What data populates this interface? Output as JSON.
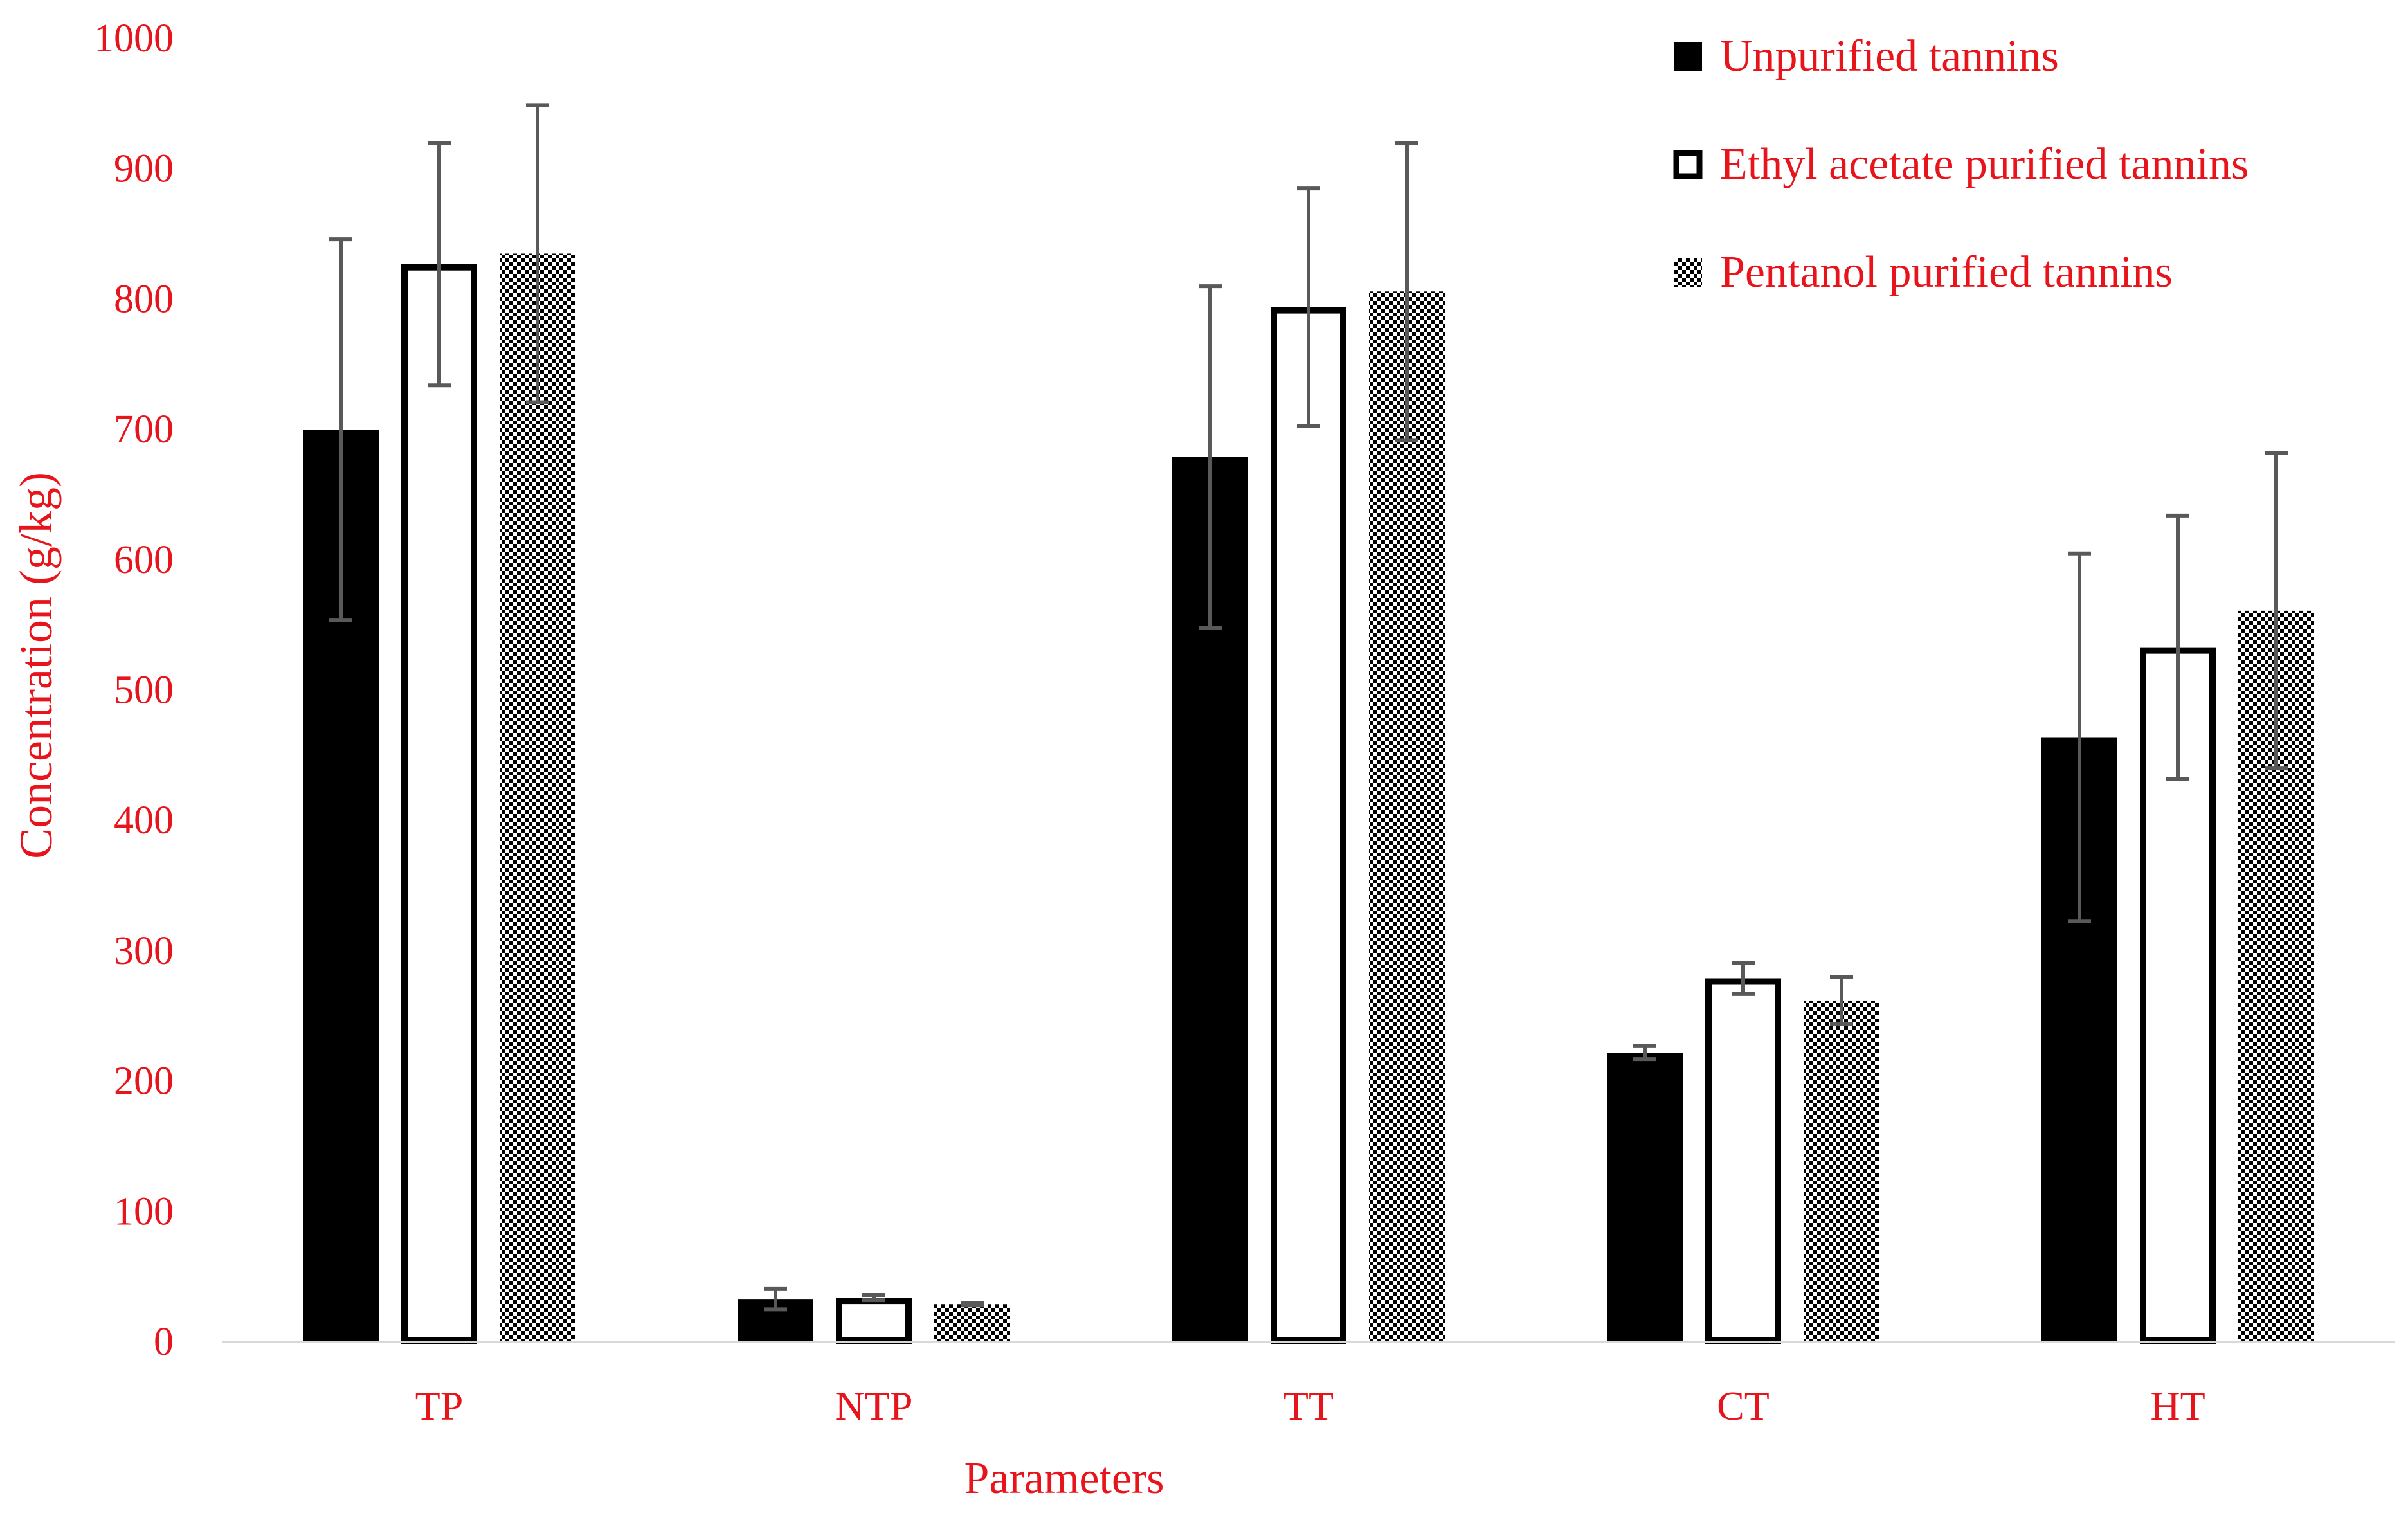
{
  "chart_data": {
    "type": "bar",
    "title": "",
    "xlabel": "Parameters",
    "ylabel": "Concentration (g/kg)",
    "ylim": [
      0,
      1000
    ],
    "yticks": [
      0,
      100,
      200,
      300,
      400,
      500,
      600,
      700,
      800,
      900,
      1000
    ],
    "grid": false,
    "legend_position": "top-right",
    "categories": [
      "TP",
      "NTP",
      "TT",
      "CT",
      "HT"
    ],
    "series": [
      {
        "name": "Unpurified tannins",
        "fill": "solid",
        "values": [
          699,
          32,
          678,
          221,
          463
        ],
        "errors": [
          146,
          8,
          131,
          5,
          141
        ]
      },
      {
        "name": "Ethyl acetate purified tannins",
        "fill": "outline",
        "values": [
          826,
          33,
          793,
          278,
          532
        ],
        "errors": [
          93,
          2,
          91,
          12,
          101
        ]
      },
      {
        "name": "Pentanol purified tannins",
        "fill": "checkered",
        "values": [
          834,
          28,
          805,
          261,
          560
        ],
        "errors": [
          114,
          1,
          114,
          18,
          121
        ]
      }
    ],
    "colors": {
      "text": "#e8141b",
      "bar": "#000000",
      "error_bar": "#595959",
      "axis": "#d9d9d9"
    }
  }
}
